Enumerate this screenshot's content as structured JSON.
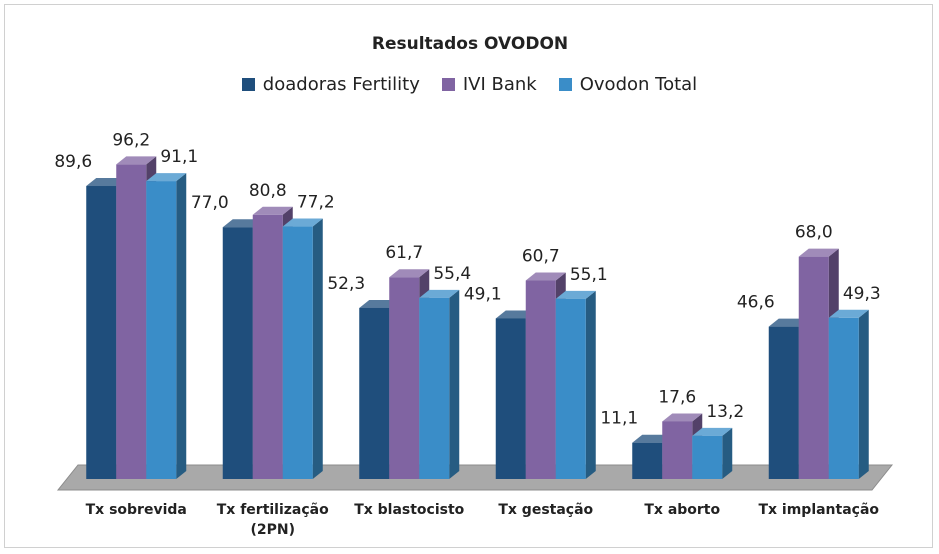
{
  "chart_data": {
    "type": "bar",
    "title": "Resultados OVODON",
    "categories": [
      "Tx sobrevida",
      "Tx fertilização (2PN)",
      "Tx blastocisto",
      "Tx gestação",
      "Tx aborto",
      "Tx implantação"
    ],
    "series": [
      {
        "name": "doadoras Fertility",
        "color": "#1f4e7c",
        "values": [
          89.6,
          77.0,
          52.3,
          49.1,
          11.1,
          46.6
        ],
        "value_labels": [
          "89,6",
          "77,0",
          "52,3",
          "49,1",
          "11,1",
          "46,6"
        ]
      },
      {
        "name": "IVI Bank",
        "color": "#8064a2",
        "values": [
          96.2,
          80.8,
          61.7,
          60.7,
          17.6,
          68.0
        ],
        "value_labels": [
          "96,2",
          "80,8",
          "61,7",
          "60,7",
          "17,6",
          "68,0"
        ]
      },
      {
        "name": "Ovodon Total",
        "color": "#3a8dc8",
        "values": [
          91.1,
          77.2,
          55.4,
          55.1,
          13.2,
          49.3
        ],
        "value_labels": [
          "91,1",
          "77,2",
          "55,4",
          "55,1",
          "13,2",
          "49,3"
        ]
      }
    ],
    "ylim": [
      0,
      100
    ],
    "legend": "top"
  }
}
